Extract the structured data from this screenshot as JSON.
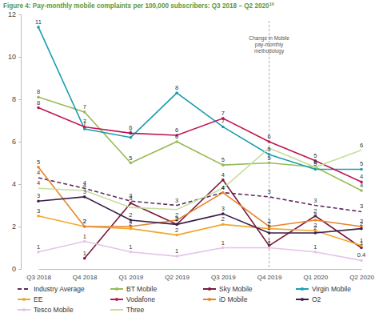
{
  "chart_data": {
    "type": "line",
    "title": "Figure 4: Pay-monthly mobile complaints per 100,000 subscribers: Q3 2018 – Q2 2020",
    "title_note": "10",
    "categories": [
      "Q3 2018",
      "Q4 2018",
      "Q1 2019",
      "Q2 2019",
      "Q3 2019",
      "Q4 2019",
      "Q1 2020",
      "Q2 2020"
    ],
    "ylim": [
      0,
      12
    ],
    "yticks": [
      0,
      2,
      4,
      6,
      8,
      10,
      12
    ],
    "grid": false,
    "data_labels": true,
    "legend": "bottom",
    "annotations": [
      {
        "x": "Q4 2019",
        "text": [
          "Change in Mobile",
          "pay-monthly",
          "methodology"
        ]
      }
    ],
    "series": [
      {
        "name": "Industry Average",
        "color": "#5c2a5e",
        "line_style": "dashed",
        "marker": "none",
        "values": [
          4.3,
          3.8,
          3.2,
          3.0,
          3.6,
          3.4,
          3.0,
          2.7
        ],
        "value_labels": [
          "4",
          "4",
          "3",
          "3",
          "4",
          "3",
          "3",
          "3"
        ]
      },
      {
        "name": "BT Mobile",
        "color": "#9bbb59",
        "line_style": "solid",
        "marker": "circle",
        "values": [
          8.1,
          7.4,
          5.0,
          6.0,
          4.9,
          5.0,
          4.8,
          3.7
        ],
        "value_labels": [
          "8",
          "7",
          "5",
          "6",
          "5",
          "5",
          "5",
          "4"
        ]
      },
      {
        "name": "Sky Mobile",
        "color": "#7b1a3c",
        "line_style": "solid",
        "marker": "circle",
        "values": [
          null,
          0.5,
          3.1,
          2.1,
          4.2,
          1.1,
          2.5,
          1.0
        ],
        "value_labels": [
          null,
          "1",
          "3",
          "2",
          "4",
          "1",
          "2",
          "1"
        ]
      },
      {
        "name": "Virgin Mobile",
        "color": "#1a9fae",
        "line_style": "solid",
        "marker": "circle",
        "values": [
          11.4,
          6.6,
          6.2,
          8.3,
          6.7,
          5.4,
          4.7,
          4.7
        ],
        "value_labels": [
          "11",
          "7",
          "6",
          "8",
          "7",
          "5",
          "5",
          "5"
        ]
      },
      {
        "name": "EE",
        "color": "#f0a830",
        "line_style": "solid",
        "marker": "circle",
        "values": [
          2.5,
          2.0,
          1.9,
          1.6,
          2.1,
          1.9,
          1.8,
          1.1
        ],
        "value_labels": [
          "3",
          "2",
          "2",
          "2",
          "2",
          "2",
          "2",
          "1"
        ]
      },
      {
        "name": "Vodafone",
        "color": "#c0174f",
        "line_style": "solid",
        "marker": "circle",
        "values": [
          7.6,
          6.7,
          6.4,
          6.3,
          7.1,
          6.0,
          5.1,
          4.1
        ],
        "value_labels": [
          "8",
          "7",
          "6",
          "6",
          "7",
          "6",
          "5",
          "4"
        ]
      },
      {
        "name": "iD Mobile",
        "color": "#e8832a",
        "line_style": "solid",
        "marker": "circle",
        "values": [
          4.8,
          2.0,
          2.0,
          2.3,
          3.6,
          2.0,
          2.3,
          2.0
        ],
        "value_labels": [
          "5",
          "2",
          "2",
          "2",
          "4",
          "2",
          "2",
          "2"
        ]
      },
      {
        "name": "O2",
        "color": "#3b1f4a",
        "line_style": "solid",
        "marker": "circle",
        "values": [
          3.2,
          3.4,
          2.3,
          2.1,
          2.6,
          1.7,
          1.7,
          1.9
        ],
        "value_labels": [
          "3",
          "3",
          "2",
          "2",
          "3",
          "2",
          "2",
          "2"
        ]
      },
      {
        "name": "Tesco Mobile",
        "color": "#e5c3ea",
        "line_style": "solid",
        "marker": "circle",
        "values": [
          0.8,
          1.3,
          0.8,
          0.6,
          1.0,
          1.0,
          0.8,
          0.4
        ],
        "value_labels": [
          "1",
          "1",
          "1",
          "1",
          "1",
          "1",
          "1",
          "0.4"
        ]
      },
      {
        "name": "Three",
        "color": "#c5df9f",
        "line_style": "solid",
        "marker": "none",
        "values": [
          3.8,
          3.7,
          2.9,
          2.8,
          3.8,
          5.7,
          4.8,
          5.6
        ],
        "value_labels": [
          "4",
          "4",
          null,
          null,
          null,
          null,
          null,
          "6"
        ]
      }
    ]
  }
}
